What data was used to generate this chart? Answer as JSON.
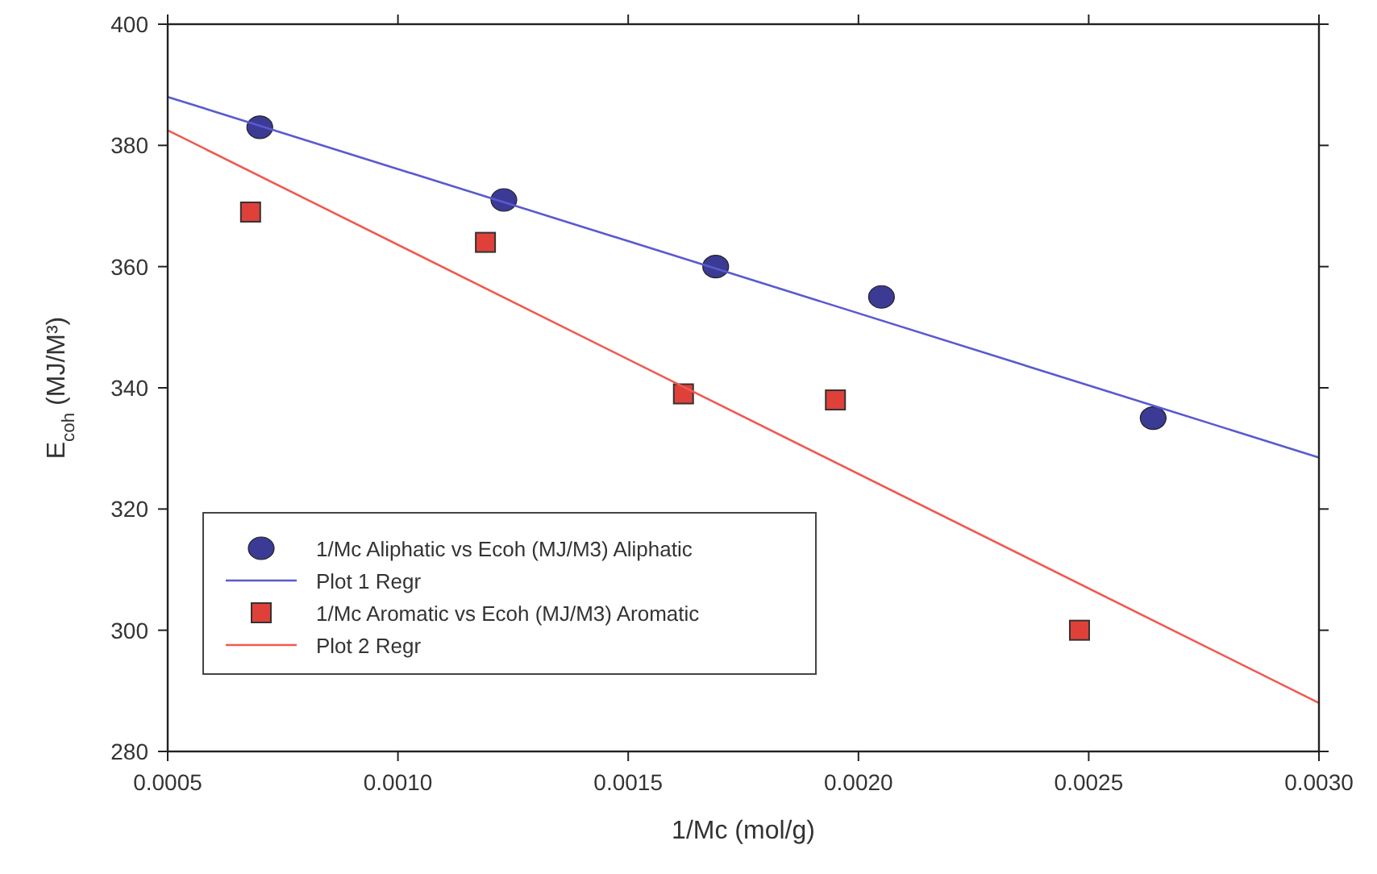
{
  "chart_data": {
    "type": "scatter",
    "xlabel": "1/Mc (mol/g)",
    "ylabel": "E$_{coh}$ (MJ/M³)",
    "xlim": [
      0.0005,
      0.003
    ],
    "ylim": [
      280,
      400
    ],
    "xticks": [
      {
        "value": 0.0005,
        "label": "0.0005"
      },
      {
        "value": 0.001,
        "label": "0.0010"
      },
      {
        "value": 0.0015,
        "label": "0.0015"
      },
      {
        "value": 0.002,
        "label": "0.0020"
      },
      {
        "value": 0.0025,
        "label": "0.0025"
      },
      {
        "value": 0.003,
        "label": "0.0030"
      }
    ],
    "yticks": [
      280,
      300,
      320,
      340,
      360,
      380,
      400
    ],
    "grid": false,
    "legend": "bottom left",
    "series": [
      {
        "name": "1/Mc Aliphatic vs Ecoh (MJ/M3) Aliphatic",
        "marker": "circle",
        "color": "#3b3a94",
        "x": [
          0.0007,
          0.00123,
          0.00169,
          0.00205,
          0.00264
        ],
        "values": [
          383,
          371,
          360,
          355,
          335
        ]
      },
      {
        "name": "Plot 1 Regr",
        "type": "line",
        "color": "#5a5ad0",
        "x": [
          0.0005,
          0.003
        ],
        "values": [
          388,
          328.5
        ]
      },
      {
        "name": "1/Mc Aromatic vs Ecoh (MJ/M3) Aromatic",
        "marker": "square",
        "color": "#e0403a",
        "x": [
          0.00068,
          0.00119,
          0.00162,
          0.00195,
          0.00248
        ],
        "values": [
          369,
          364,
          339,
          338,
          300
        ]
      },
      {
        "name": "Plot 2 Regr",
        "type": "line",
        "color": "#f05a50",
        "x": [
          0.0005,
          0.003
        ],
        "values": [
          382.5,
          288
        ]
      }
    ]
  }
}
